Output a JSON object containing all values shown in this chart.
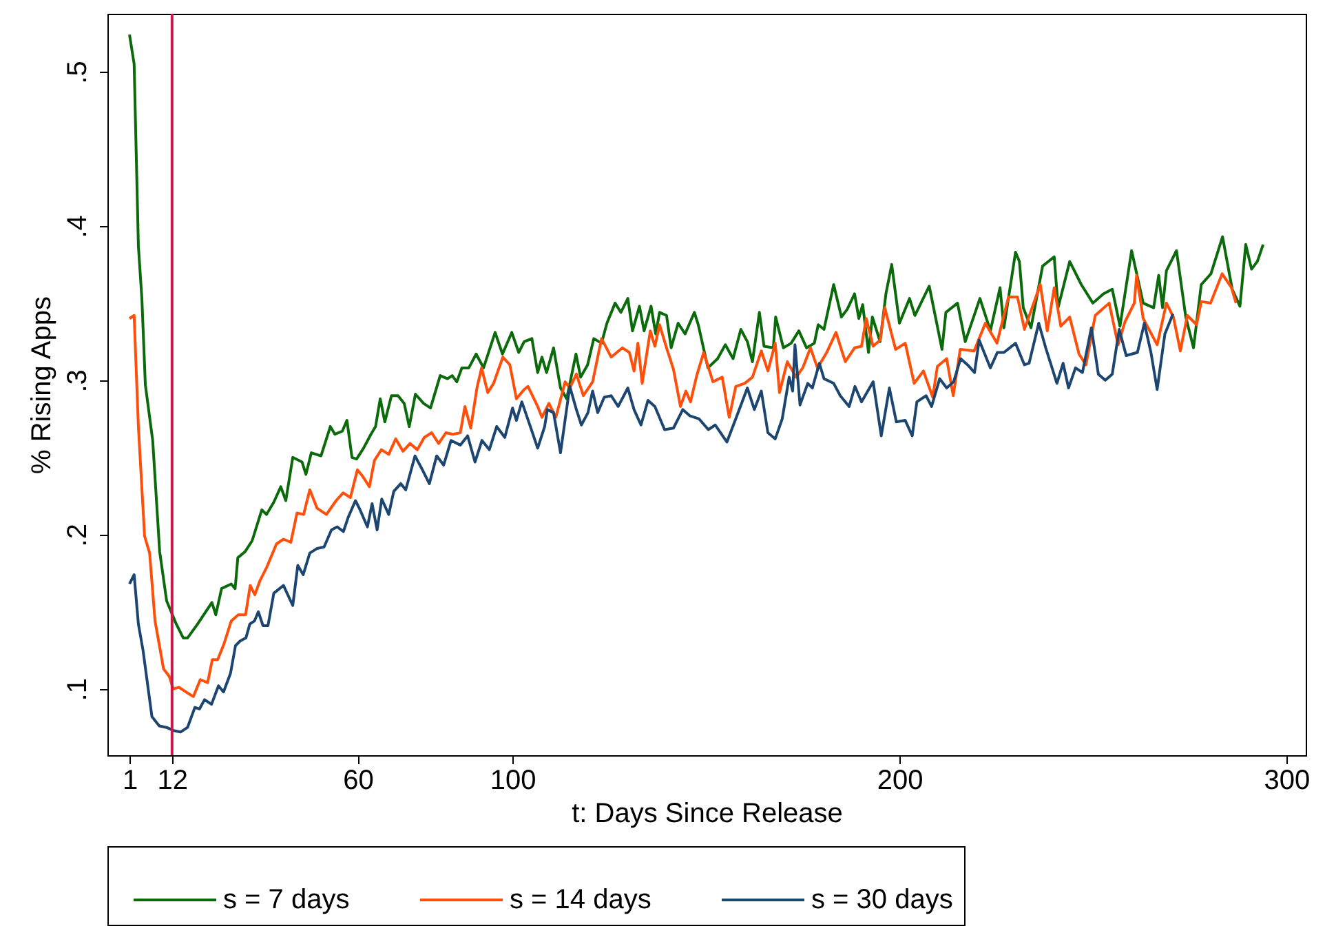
{
  "chart_data": {
    "type": "line",
    "xlabel": "t: Days Since Release",
    "ylabel": "% Rising Apps",
    "xlim": [
      -4.7,
      305
    ],
    "xticks": [
      1,
      12,
      60,
      100,
      200,
      300
    ],
    "ylim": [
      0.057,
      0.5375
    ],
    "yticks": [
      {
        "value": 0.1,
        "label": ".1"
      },
      {
        "value": 0.2,
        "label": ".2"
      },
      {
        "value": 0.3,
        "label": ".3"
      },
      {
        "value": 0.4,
        "label": ".4"
      },
      {
        "value": 0.5,
        "label": ".5"
      }
    ],
    "grid": false,
    "legend": "bottom",
    "line_style": "solid",
    "ref_lines": [
      {
        "axis": "x",
        "value": 12,
        "color": "#c8194b"
      }
    ],
    "series": [
      {
        "name": "s = 7 days",
        "color": "#0b6a0b",
        "x": [
          1,
          2.2,
          3.3,
          4.2,
          5.1,
          7,
          8.8,
          10.6,
          13.1,
          14.9,
          16,
          18.6,
          22.3,
          23.3,
          24.8,
          27.3,
          28.3,
          29,
          30.9,
          32.7,
          35.2,
          36.4,
          38.3,
          40.1,
          41.4,
          43.2,
          45.6,
          46.6,
          48,
          50.5,
          52.9,
          54.1,
          56,
          57.2,
          58.5,
          59.7,
          61.5,
          63.4,
          64.6,
          65.8,
          67,
          68.7,
          70.4,
          72,
          73.3,
          74.9,
          77,
          78.8,
          81.3,
          83.2,
          84.4,
          85.6,
          86.9,
          88.7,
          90.6,
          92.5,
          95.5,
          97.4,
          99.8,
          101.6,
          103,
          105,
          106.5,
          107.6,
          108.8,
          110.6,
          112.4,
          114,
          116.4,
          117.6,
          119.4,
          121,
          123,
          124.4,
          126.5,
          128,
          129.8,
          131,
          132.8,
          134,
          135.8,
          137,
          138,
          139.8,
          141,
          142.8,
          144.6,
          147,
          148,
          150.5,
          153,
          155,
          157,
          159,
          160.7,
          162,
          163.8,
          165,
          167.4,
          168,
          170,
          172,
          174,
          176,
          178,
          179,
          180.5,
          183,
          185,
          186.5,
          188.4,
          189.5,
          190.5,
          192,
          193,
          195,
          196.5,
          198,
          200,
          202.6,
          204,
          207.7,
          211,
          212,
          215,
          217,
          220.8,
          223.5,
          226,
          227,
          230,
          231,
          232,
          234,
          237,
          240,
          241,
          244,
          247,
          250,
          252.7,
          255,
          257,
          260,
          263,
          265.7,
          267,
          268,
          269,
          271.6,
          274,
          276,
          278,
          280.5,
          283.5,
          286,
          288,
          289.5,
          291,
          292.5,
          294
        ],
        "values": [
          0.524,
          0.505,
          0.387,
          0.353,
          0.297,
          0.261,
          0.189,
          0.157,
          0.142,
          0.133,
          0.133,
          0.142,
          0.156,
          0.148,
          0.165,
          0.168,
          0.165,
          0.185,
          0.189,
          0.196,
          0.216,
          0.213,
          0.221,
          0.231,
          0.222,
          0.25,
          0.247,
          0.239,
          0.253,
          0.251,
          0.27,
          0.265,
          0.267,
          0.274,
          0.25,
          0.249,
          0.256,
          0.265,
          0.27,
          0.288,
          0.273,
          0.29,
          0.29,
          0.285,
          0.27,
          0.291,
          0.285,
          0.282,
          0.303,
          0.301,
          0.303,
          0.299,
          0.308,
          0.308,
          0.317,
          0.308,
          0.331,
          0.317,
          0.331,
          0.318,
          0.325,
          0.327,
          0.305,
          0.315,
          0.305,
          0.321,
          0.295,
          0.288,
          0.317,
          0.302,
          0.31,
          0.327,
          0.324,
          0.337,
          0.35,
          0.344,
          0.353,
          0.332,
          0.348,
          0.332,
          0.348,
          0.33,
          0.344,
          0.342,
          0.321,
          0.337,
          0.33,
          0.344,
          0.336,
          0.308,
          0.314,
          0.323,
          0.314,
          0.333,
          0.325,
          0.312,
          0.344,
          0.322,
          0.321,
          0.341,
          0.321,
          0.324,
          0.332,
          0.321,
          0.324,
          0.336,
          0.333,
          0.362,
          0.341,
          0.346,
          0.356,
          0.34,
          0.349,
          0.318,
          0.341,
          0.325,
          0.356,
          0.375,
          0.337,
          0.353,
          0.342,
          0.361,
          0.32,
          0.344,
          0.35,
          0.325,
          0.353,
          0.332,
          0.36,
          0.334,
          0.383,
          0.377,
          0.347,
          0.334,
          0.374,
          0.38,
          0.347,
          0.377,
          0.362,
          0.35,
          0.356,
          0.359,
          0.335,
          0.384,
          0.35,
          0.347,
          0.368,
          0.347,
          0.371,
          0.384,
          0.341,
          0.321,
          0.362,
          0.369,
          0.393,
          0.359,
          0.348,
          0.388,
          0.372,
          0.377,
          0.388
        ]
      },
      {
        "name": "s = 14 days",
        "color": "#ff4f0a",
        "x": [
          1,
          2.2,
          3.3,
          4.9,
          6.2,
          7.6,
          9.8,
          11.3,
          12.3,
          13.8,
          15.6,
          17.5,
          19.3,
          21.2,
          22.4,
          23.8,
          25.4,
          27.3,
          29.1,
          31,
          32.2,
          33.4,
          34.7,
          36.5,
          39,
          40.8,
          42.7,
          44.3,
          46,
          47.6,
          49.5,
          51.9,
          54.4,
          56.2,
          58.1,
          59.9,
          61.2,
          63,
          64.3,
          66.1,
          68,
          69.8,
          71.7,
          73.5,
          75.4,
          77.2,
          79.1,
          80.9,
          82.8,
          84.6,
          86.5,
          87.7,
          89.2,
          90.8,
          92,
          93.6,
          95.1,
          97.5,
          99.3,
          101,
          103,
          104,
          106.5,
          107.6,
          109.4,
          111.2,
          113.6,
          114.8,
          116.5,
          118.3,
          120.7,
          123,
          125.5,
          128.4,
          130.2,
          131.4,
          132.4,
          133.5,
          135.6,
          136.8,
          138,
          139.8,
          141.6,
          143.4,
          144.8,
          146,
          147.6,
          149.4,
          151.8,
          154.2,
          156,
          157.7,
          160,
          162,
          164.3,
          166,
          167.9,
          169,
          171,
          173.3,
          175,
          177,
          178.8,
          181.2,
          183.6,
          186,
          188.4,
          190.2,
          191.4,
          193.2,
          195,
          196.2,
          199,
          201.5,
          203.8,
          206.2,
          208.6,
          209.8,
          212.2,
          213.9,
          215.7,
          219.3,
          222.2,
          225.2,
          228.2,
          230.5,
          232.3,
          234,
          236.4,
          238.2,
          240,
          241.7,
          244,
          246.4,
          248.2,
          250.6,
          254.2,
          256.5,
          258.3,
          260.7,
          261.3,
          263,
          266.6,
          269,
          270.8,
          272.6,
          274.4,
          276.8,
          278,
          280.4,
          283.4,
          285.8,
          287
        ],
        "values": [
          0.34,
          0.342,
          0.27,
          0.199,
          0.188,
          0.144,
          0.113,
          0.108,
          0.1,
          0.101,
          0.098,
          0.095,
          0.106,
          0.104,
          0.119,
          0.119,
          0.129,
          0.144,
          0.148,
          0.148,
          0.167,
          0.161,
          0.17,
          0.179,
          0.194,
          0.197,
          0.195,
          0.214,
          0.213,
          0.229,
          0.217,
          0.213,
          0.222,
          0.227,
          0.224,
          0.242,
          0.238,
          0.231,
          0.248,
          0.255,
          0.252,
          0.262,
          0.254,
          0.259,
          0.255,
          0.263,
          0.266,
          0.259,
          0.266,
          0.265,
          0.266,
          0.283,
          0.269,
          0.295,
          0.308,
          0.292,
          0.298,
          0.315,
          0.31,
          0.288,
          0.294,
          0.296,
          0.283,
          0.276,
          0.285,
          0.276,
          0.299,
          0.295,
          0.304,
          0.29,
          0.299,
          0.327,
          0.315,
          0.321,
          0.318,
          0.306,
          0.324,
          0.298,
          0.332,
          0.322,
          0.336,
          0.321,
          0.307,
          0.283,
          0.293,
          0.286,
          0.303,
          0.318,
          0.299,
          0.302,
          0.276,
          0.296,
          0.298,
          0.302,
          0.319,
          0.306,
          0.324,
          0.292,
          0.312,
          0.302,
          0.308,
          0.321,
          0.308,
          0.318,
          0.331,
          0.312,
          0.321,
          0.322,
          0.34,
          0.322,
          0.326,
          0.347,
          0.32,
          0.324,
          0.298,
          0.306,
          0.289,
          0.309,
          0.314,
          0.29,
          0.32,
          0.319,
          0.337,
          0.324,
          0.354,
          0.354,
          0.333,
          0.345,
          0.362,
          0.332,
          0.36,
          0.335,
          0.341,
          0.317,
          0.31,
          0.342,
          0.35,
          0.323,
          0.338,
          0.35,
          0.368,
          0.34,
          0.323,
          0.35,
          0.341,
          0.319,
          0.342,
          0.336,
          0.351,
          0.35,
          0.369,
          0.36,
          0.35
        ]
      },
      {
        "name": "s = 30 days",
        "color": "#1c4670",
        "x": [
          1,
          2.2,
          3.3,
          4.5,
          6.8,
          8.7,
          10.6,
          12.4,
          14.2,
          16,
          17.9,
          19.1,
          20.4,
          22.2,
          24,
          25.3,
          27.1,
          28.4,
          29.6,
          31.1,
          32.1,
          33.3,
          34.3,
          35.5,
          36.8,
          38.3,
          40.8,
          43.2,
          44.5,
          45.9,
          47.6,
          49.5,
          51.3,
          53.2,
          54.7,
          56.3,
          57.5,
          59.4,
          60.6,
          62.5,
          63.7,
          65,
          66.2,
          68,
          69.3,
          71.1,
          72.4,
          74.8,
          76.7,
          78.5,
          80.4,
          82.2,
          84.1,
          86.5,
          88.4,
          90.3,
          92.1,
          94,
          95.9,
          98,
          100,
          101,
          102.4,
          104.2,
          106.5,
          108.3,
          109,
          110.6,
          112.4,
          114.8,
          116.5,
          117.8,
          119.5,
          120.7,
          122,
          123.7,
          125.5,
          127.3,
          129.8,
          131.4,
          133.2,
          135,
          136.8,
          139.3,
          141.6,
          144,
          145.8,
          148.2,
          150.6,
          152.4,
          155.4,
          157.7,
          160.7,
          162.5,
          164.3,
          166,
          167.9,
          169.7,
          171.5,
          172.4,
          173,
          174.3,
          176.3,
          177.5,
          179.3,
          180.5,
          183,
          184.7,
          187,
          188.5,
          190.2,
          193.2,
          195.3,
          197.4,
          199.2,
          201.5,
          203.3,
          204.5,
          206.9,
          208.3,
          210.4,
          212.2,
          214,
          215.8,
          217.6,
          219.4,
          220.6,
          223.5,
          225.3,
          227,
          230,
          232.3,
          233.5,
          236,
          237.8,
          240.7,
          242.3,
          243.7,
          245.5,
          247.3,
          249.6,
          251.4,
          253.2,
          255,
          256.8,
          258.6,
          261.5,
          263.3,
          265,
          266.6,
          268.6,
          270.7
        ],
        "values": [
          0.168,
          0.174,
          0.142,
          0.125,
          0.082,
          0.076,
          0.075,
          0.073,
          0.072,
          0.075,
          0.088,
          0.087,
          0.093,
          0.09,
          0.102,
          0.098,
          0.11,
          0.128,
          0.131,
          0.133,
          0.142,
          0.144,
          0.15,
          0.141,
          0.141,
          0.162,
          0.167,
          0.154,
          0.18,
          0.174,
          0.188,
          0.191,
          0.192,
          0.203,
          0.205,
          0.202,
          0.211,
          0.222,
          0.216,
          0.205,
          0.22,
          0.203,
          0.223,
          0.213,
          0.228,
          0.233,
          0.229,
          0.251,
          0.242,
          0.233,
          0.251,
          0.245,
          0.261,
          0.258,
          0.264,
          0.247,
          0.261,
          0.255,
          0.27,
          0.263,
          0.282,
          0.274,
          0.286,
          0.273,
          0.256,
          0.27,
          0.281,
          0.279,
          0.253,
          0.296,
          0.281,
          0.271,
          0.279,
          0.293,
          0.279,
          0.289,
          0.29,
          0.283,
          0.295,
          0.281,
          0.271,
          0.287,
          0.283,
          0.268,
          0.269,
          0.281,
          0.277,
          0.275,
          0.268,
          0.271,
          0.26,
          0.275,
          0.295,
          0.281,
          0.293,
          0.266,
          0.262,
          0.275,
          0.302,
          0.293,
          0.323,
          0.284,
          0.298,
          0.295,
          0.311,
          0.301,
          0.298,
          0.29,
          0.283,
          0.296,
          0.286,
          0.299,
          0.264,
          0.295,
          0.273,
          0.274,
          0.264,
          0.286,
          0.29,
          0.283,
          0.301,
          0.295,
          0.299,
          0.314,
          0.31,
          0.305,
          0.326,
          0.308,
          0.318,
          0.318,
          0.324,
          0.31,
          0.311,
          0.337,
          0.321,
          0.298,
          0.311,
          0.295,
          0.308,
          0.305,
          0.334,
          0.304,
          0.3,
          0.304,
          0.333,
          0.316,
          0.318,
          0.337,
          0.318,
          0.294,
          0.33,
          0.343
        ]
      }
    ]
  }
}
